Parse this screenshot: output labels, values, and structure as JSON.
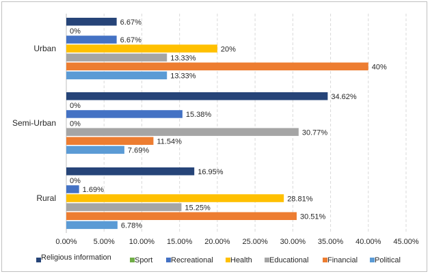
{
  "chart_data": {
    "type": "bar",
    "orientation": "horizontal",
    "categories": [
      "Urban",
      "Semi-Urban",
      "Rural"
    ],
    "series": [
      {
        "name": "Religious information",
        "color": "#264478",
        "values": [
          6.67,
          34.62,
          16.95
        ],
        "labels": [
          "6.67%",
          "34.62%",
          "16.95%"
        ]
      },
      {
        "name": "Sport",
        "color": "#70ad47",
        "values": [
          0,
          0,
          0
        ],
        "labels": [
          "0%",
          "0%",
          "0%"
        ]
      },
      {
        "name": "Recreational",
        "color": "#4472c4",
        "values": [
          6.67,
          15.38,
          1.69
        ],
        "labels": [
          "6.67%",
          "15.38%",
          "1.69%"
        ]
      },
      {
        "name": "Health",
        "color": "#ffc000",
        "values": [
          20,
          0,
          28.81
        ],
        "labels": [
          "20%",
          "0%",
          "28.81%"
        ]
      },
      {
        "name": "Educational",
        "color": "#a5a5a5",
        "values": [
          13.33,
          30.77,
          15.25
        ],
        "labels": [
          "13.33%",
          "30.77%",
          "15.25%"
        ]
      },
      {
        "name": "Financial",
        "color": "#ed7d31",
        "values": [
          40,
          11.54,
          30.51
        ],
        "labels": [
          "40%",
          "11.54%",
          "30.51%"
        ]
      },
      {
        "name": "Political",
        "color": "#5b9bd5",
        "values": [
          13.33,
          7.69,
          6.78
        ],
        "labels": [
          "13.33%",
          "7.69%",
          "6.78%"
        ]
      }
    ],
    "xlim": [
      0,
      45
    ],
    "x_ticks": [
      "0.00%",
      "5.00%",
      "10.00%",
      "15.00%",
      "20.00%",
      "25.00%",
      "30.00%",
      "35.00%",
      "40.00%",
      "45.00%"
    ],
    "x_tick_values": [
      0,
      5,
      10,
      15,
      20,
      25,
      30,
      35,
      40,
      45
    ],
    "grid": "vertical-dashed",
    "legend_position": "bottom",
    "title": "",
    "xlabel": "",
    "ylabel": ""
  }
}
